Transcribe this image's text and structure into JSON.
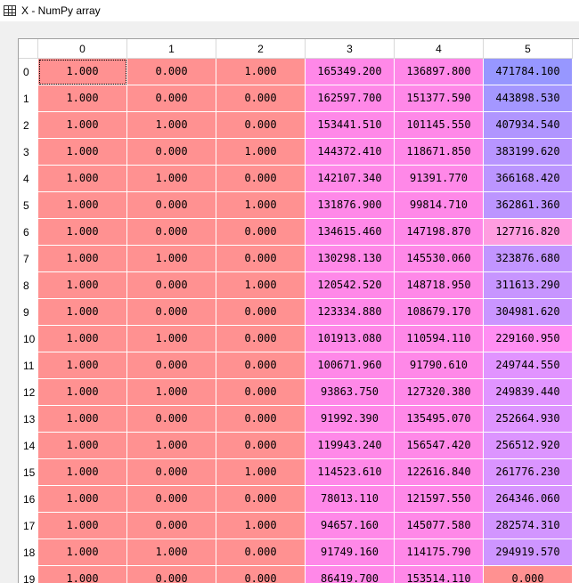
{
  "window": {
    "title": "X - NumPy array",
    "icon": "table-icon"
  },
  "columns": [
    "0",
    "1",
    "2",
    "3",
    "4",
    "5"
  ],
  "rows": [
    {
      "index": "0",
      "cells": [
        "1.000",
        "0.000",
        "1.000",
        "165349.200",
        "136897.800",
        "471784.100"
      ]
    },
    {
      "index": "1",
      "cells": [
        "1.000",
        "0.000",
        "0.000",
        "162597.700",
        "151377.590",
        "443898.530"
      ]
    },
    {
      "index": "2",
      "cells": [
        "1.000",
        "1.000",
        "0.000",
        "153441.510",
        "101145.550",
        "407934.540"
      ]
    },
    {
      "index": "3",
      "cells": [
        "1.000",
        "0.000",
        "1.000",
        "144372.410",
        "118671.850",
        "383199.620"
      ]
    },
    {
      "index": "4",
      "cells": [
        "1.000",
        "1.000",
        "0.000",
        "142107.340",
        "91391.770",
        "366168.420"
      ]
    },
    {
      "index": "5",
      "cells": [
        "1.000",
        "0.000",
        "1.000",
        "131876.900",
        "99814.710",
        "362861.360"
      ]
    },
    {
      "index": "6",
      "cells": [
        "1.000",
        "0.000",
        "0.000",
        "134615.460",
        "147198.870",
        "127716.820"
      ]
    },
    {
      "index": "7",
      "cells": [
        "1.000",
        "1.000",
        "0.000",
        "130298.130",
        "145530.060",
        "323876.680"
      ]
    },
    {
      "index": "8",
      "cells": [
        "1.000",
        "0.000",
        "1.000",
        "120542.520",
        "148718.950",
        "311613.290"
      ]
    },
    {
      "index": "9",
      "cells": [
        "1.000",
        "0.000",
        "0.000",
        "123334.880",
        "108679.170",
        "304981.620"
      ]
    },
    {
      "index": "10",
      "cells": [
        "1.000",
        "1.000",
        "0.000",
        "101913.080",
        "110594.110",
        "229160.950"
      ]
    },
    {
      "index": "11",
      "cells": [
        "1.000",
        "0.000",
        "0.000",
        "100671.960",
        "91790.610",
        "249744.550"
      ]
    },
    {
      "index": "12",
      "cells": [
        "1.000",
        "1.000",
        "0.000",
        "93863.750",
        "127320.380",
        "249839.440"
      ]
    },
    {
      "index": "13",
      "cells": [
        "1.000",
        "0.000",
        "0.000",
        "91992.390",
        "135495.070",
        "252664.930"
      ]
    },
    {
      "index": "14",
      "cells": [
        "1.000",
        "1.000",
        "0.000",
        "119943.240",
        "156547.420",
        "256512.920"
      ]
    },
    {
      "index": "15",
      "cells": [
        "1.000",
        "0.000",
        "1.000",
        "114523.610",
        "122616.840",
        "261776.230"
      ]
    },
    {
      "index": "16",
      "cells": [
        "1.000",
        "0.000",
        "0.000",
        "78013.110",
        "121597.550",
        "264346.060"
      ]
    },
    {
      "index": "17",
      "cells": [
        "1.000",
        "0.000",
        "1.000",
        "94657.160",
        "145077.580",
        "282574.310"
      ]
    },
    {
      "index": "18",
      "cells": [
        "1.000",
        "1.000",
        "0.000",
        "91749.160",
        "114175.790",
        "294919.570"
      ]
    },
    {
      "index": "19",
      "cells": [
        "1.000",
        "0.000",
        "0.000",
        "86419.700",
        "153514.110",
        "0.000"
      ]
    }
  ],
  "colors": {
    "col0": "#ff9191",
    "col1": "#ff9191",
    "col2": "#ff9191",
    "col3": "#ff88e8",
    "col4": "#ff88e8",
    "col5": [
      "#9797ff",
      "#a497ff",
      "#b095ff",
      "#b895ff",
      "#bb95ff",
      "#bc95ff",
      "#ff9de0",
      "#c295ff",
      "#c795ff",
      "#ca95ff",
      "#ff8ef2",
      "#e193ff",
      "#e194ff",
      "#de94ff",
      "#dc94ff",
      "#da94ff",
      "#d894ff",
      "#d295ff",
      "#ce95ff",
      "#ff9191"
    ]
  },
  "selected_cell": {
    "row": 0,
    "col": 0
  }
}
